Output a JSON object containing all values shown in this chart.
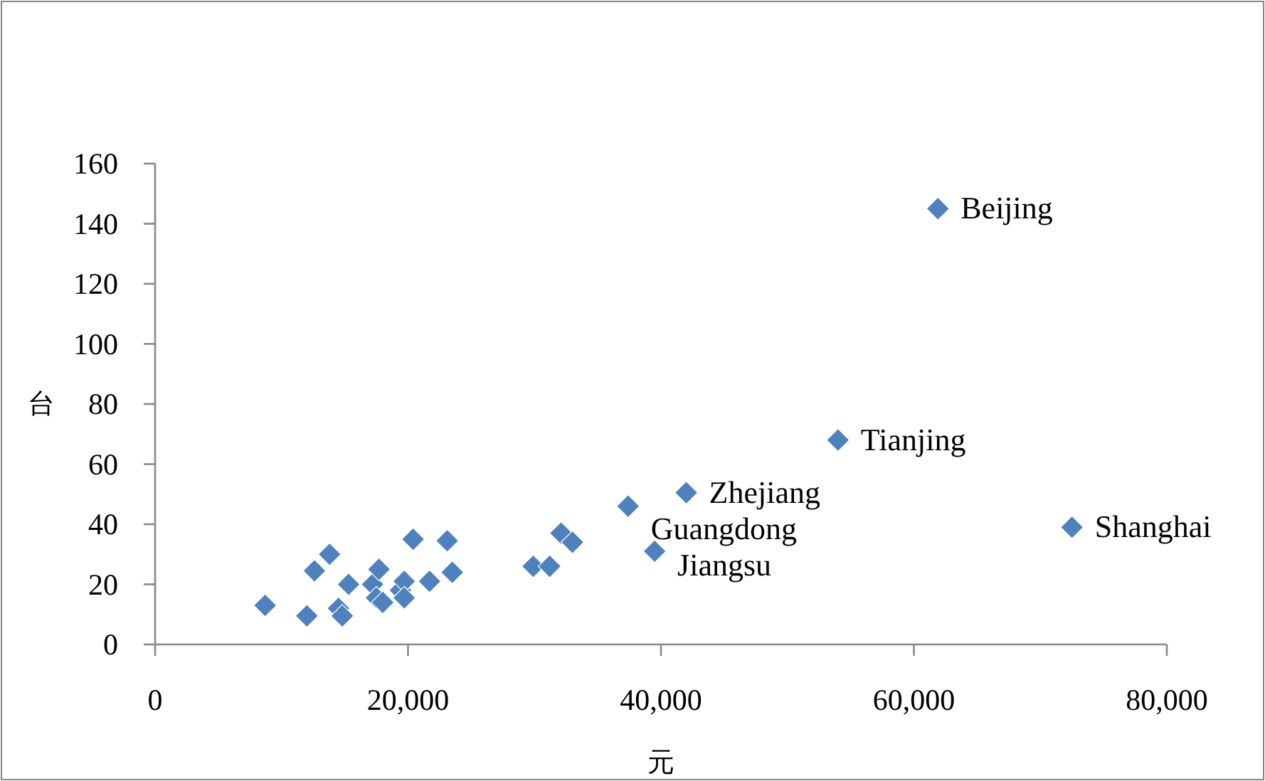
{
  "chart_data": {
    "type": "scatter",
    "xlabel": "元",
    "ylabel": "台",
    "color": "#4f81bd",
    "marker": "diamond",
    "grid": false,
    "x": [
      8700,
      12000,
      12600,
      13800,
      14500,
      14800,
      15300,
      17200,
      17700,
      17500,
      18000,
      19400,
      19700,
      19700,
      20400,
      21700,
      23100,
      23500,
      29900,
      31200,
      32100,
      33000,
      37400,
      42000,
      39500,
      54000,
      61900,
      72500
    ],
    "values": [
      13,
      9.5,
      24.5,
      30,
      12,
      9.5,
      20,
      20,
      25,
      15.5,
      14,
      18,
      21,
      15.5,
      35,
      21,
      34.5,
      24,
      26,
      26,
      37,
      34,
      46,
      50.5,
      31,
      68,
      145,
      39
    ],
    "xlim": [
      0,
      80000
    ],
    "ylim": [
      0,
      160
    ],
    "xticks": [
      0,
      {
        "value": 20000,
        "label": "20,000"
      },
      {
        "value": 40000,
        "label": "40,000"
      },
      {
        "value": 60000,
        "label": "60,000"
      },
      {
        "value": 80000,
        "label": "80,000"
      }
    ],
    "yticks": [
      0,
      20,
      40,
      60,
      80,
      100,
      120,
      140,
      160
    ],
    "annotations": [
      {
        "text": "Beijing",
        "x": 61900,
        "y": 145
      },
      {
        "text": "Tianjing",
        "x": 54000,
        "y": 68
      },
      {
        "text": "Zhejiang",
        "x": 42000,
        "y": 50.5
      },
      {
        "text": "Guangdong",
        "x": 37400,
        "y": 46
      },
      {
        "text": "Jiangsu",
        "x": 39500,
        "y": 31
      },
      {
        "text": "Shanghai",
        "x": 72500,
        "y": 39
      }
    ]
  }
}
